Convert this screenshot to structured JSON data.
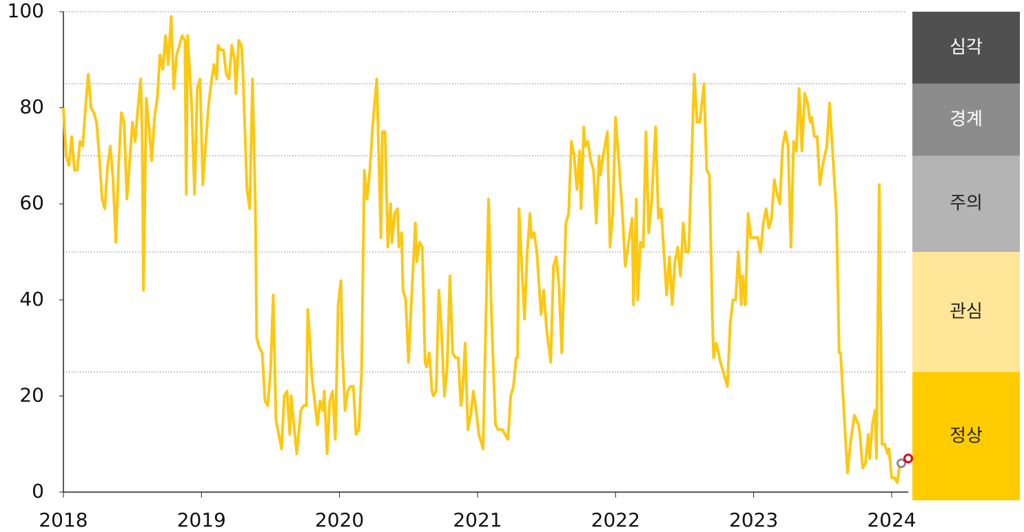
{
  "chart_data": {
    "type": "line",
    "x": [
      2018.0,
      2018.02,
      2018.04,
      2018.06,
      2018.08,
      2018.1,
      2018.12,
      2018.14,
      2018.16,
      2018.18,
      2018.2,
      2018.22,
      2018.24,
      2018.26,
      2018.28,
      2018.3,
      2018.32,
      2018.34,
      2018.36,
      2018.38,
      2018.4,
      2018.42,
      2018.44,
      2018.46,
      2018.48,
      2018.5,
      2018.52,
      2018.54,
      2018.56,
      2018.57,
      2018.58,
      2018.6,
      2018.62,
      2018.64,
      2018.66,
      2018.68,
      2018.7,
      2018.72,
      2018.74,
      2018.76,
      2018.78,
      2018.8,
      2018.82,
      2018.84,
      2018.86,
      2018.88,
      2018.89,
      2018.9,
      2018.93,
      2018.95,
      2018.97,
      2018.99,
      2019.01,
      2019.03,
      2019.05,
      2019.07,
      2019.09,
      2019.11,
      2019.12,
      2019.14,
      2019.16,
      2019.18,
      2019.2,
      2019.22,
      2019.24,
      2019.25,
      2019.27,
      2019.29,
      2019.3,
      2019.33,
      2019.35,
      2019.37,
      2019.39,
      2019.4,
      2019.42,
      2019.44,
      2019.46,
      2019.48,
      2019.5,
      2019.52,
      2019.54,
      2019.56,
      2019.58,
      2019.6,
      2019.62,
      2019.64,
      2019.65,
      2019.67,
      2019.69,
      2019.72,
      2019.74,
      2019.76,
      2019.77,
      2019.78,
      2019.8,
      2019.82,
      2019.84,
      2019.86,
      2019.88,
      2019.89,
      2019.91,
      2019.93,
      2019.95,
      2019.97,
      2019.99,
      2020.01,
      2020.02,
      2020.04,
      2020.06,
      2020.08,
      2020.1,
      2020.12,
      2020.14,
      2020.16,
      2020.18,
      2020.2,
      2020.22,
      2020.24,
      2020.27,
      2020.3,
      2020.31,
      2020.33,
      2020.35,
      2020.37,
      2020.38,
      2020.4,
      2020.42,
      2020.43,
      2020.45,
      2020.46,
      2020.48,
      2020.5,
      2020.52,
      2020.55,
      2020.56,
      2020.58,
      2020.6,
      2020.62,
      2020.63,
      2020.65,
      2020.67,
      2020.68,
      2020.7,
      2020.72,
      2020.74,
      2020.76,
      2020.78,
      2020.8,
      2020.82,
      2020.84,
      2020.86,
      2020.88,
      2020.89,
      2020.91,
      2020.93,
      2020.95,
      2020.97,
      2020.99,
      2021.01,
      2021.04,
      2021.08,
      2021.1,
      2021.13,
      2021.15,
      2021.18,
      2021.2,
      2021.22,
      2021.24,
      2021.26,
      2021.28,
      2021.29,
      2021.3,
      2021.34,
      2021.36,
      2021.38,
      2021.39,
      2021.41,
      2021.43,
      2021.46,
      2021.48,
      2021.5,
      2021.53,
      2021.55,
      2021.57,
      2021.59,
      2021.61,
      2021.64,
      2021.66,
      2021.68,
      2021.7,
      2021.72,
      2021.74,
      2021.75,
      2021.77,
      2021.78,
      2021.8,
      2021.82,
      2021.84,
      2021.86,
      2021.88,
      2021.89,
      2021.91,
      2021.94,
      2021.96,
      2021.98,
      2022.0,
      2022.03,
      2022.05,
      2022.07,
      2022.09,
      2022.12,
      2022.13,
      2022.15,
      2022.16,
      2022.18,
      2022.2,
      2022.22,
      2022.24,
      2022.26,
      2022.29,
      2022.31,
      2022.33,
      2022.35,
      2022.37,
      2022.39,
      2022.41,
      2022.43,
      2022.45,
      2022.47,
      2022.49,
      2022.51,
      2022.53,
      2022.57,
      2022.59,
      2022.61,
      2022.64,
      2022.66,
      2022.68,
      2022.7,
      2022.71,
      2022.73,
      2022.76,
      2022.81,
      2022.83,
      2022.85,
      2022.87,
      2022.89,
      2022.91,
      2022.92,
      2022.94,
      2022.96,
      2022.98,
      2023.0,
      2023.03,
      2023.05,
      2023.07,
      2023.09,
      2023.11,
      2023.13,
      2023.15,
      2023.17,
      2023.19,
      2023.21,
      2023.23,
      2023.25,
      2023.27,
      2023.29,
      2023.31,
      2023.33,
      2023.35,
      2023.37,
      2023.39,
      2023.41,
      2023.42,
      2023.44,
      2023.46,
      2023.48,
      2023.5,
      2023.53,
      2023.55,
      2023.57,
      2023.6,
      2023.62,
      2023.63,
      2023.66,
      2023.68,
      2023.7,
      2023.73,
      2023.76,
      2023.77,
      2023.79,
      2023.81,
      2023.83,
      2023.84,
      2023.86,
      2023.88,
      2023.89,
      2023.91,
      2023.93,
      2023.95,
      2023.97,
      2023.98,
      2024.0,
      2024.02,
      2024.04,
      2024.06,
      2024.1
    ],
    "values": [
      80,
      70,
      68,
      74,
      67,
      67,
      73,
      72,
      80,
      87,
      80,
      79,
      77,
      70,
      61,
      59,
      68,
      72,
      65,
      52,
      68,
      79,
      77,
      61,
      69,
      77,
      73,
      80,
      86,
      75,
      42,
      82,
      76,
      69,
      78,
      82,
      91,
      88,
      95,
      89,
      99,
      84,
      91,
      93,
      95,
      94,
      62,
      95,
      80,
      62,
      84,
      86,
      64,
      72,
      80,
      85,
      89,
      86,
      93,
      92,
      92,
      87,
      86,
      93,
      90,
      83,
      94,
      93,
      88,
      63,
      59,
      86,
      60,
      32,
      30,
      29,
      19,
      18,
      25,
      41,
      15,
      12,
      9,
      20,
      21,
      12,
      20,
      14,
      8,
      17,
      18,
      18,
      38,
      34,
      24,
      19,
      14,
      19,
      17,
      21,
      8,
      19,
      21,
      11,
      39,
      44,
      30,
      17,
      21,
      22,
      22,
      12,
      13,
      25,
      67,
      61,
      67,
      76,
      86,
      53,
      75,
      75,
      51,
      60,
      52,
      58,
      59,
      51,
      54,
      42,
      40,
      27,
      39,
      56,
      48,
      52,
      51,
      27,
      26,
      29,
      21,
      20,
      21,
      42,
      33,
      20,
      26,
      45,
      29,
      28,
      28,
      18,
      20,
      31,
      13,
      16,
      21,
      17,
      12,
      9,
      61,
      38,
      14,
      13,
      13,
      12,
      11,
      20,
      22,
      28,
      28,
      59,
      36,
      50,
      58,
      53,
      54,
      50,
      37,
      42,
      34,
      27,
      47,
      49,
      43,
      29,
      56,
      58,
      73,
      70,
      63,
      71,
      59,
      76,
      72,
      73,
      69,
      67,
      56,
      70,
      66,
      70,
      75,
      51,
      58,
      78,
      66,
      58,
      47,
      51,
      57,
      39,
      61,
      40,
      52,
      51,
      75,
      54,
      60,
      76,
      57,
      59,
      50,
      41,
      49,
      39,
      48,
      51,
      45,
      56,
      50,
      50,
      87,
      77,
      77,
      85,
      67,
      66,
      38,
      28,
      31,
      27,
      22,
      35,
      40,
      40,
      50,
      39,
      45,
      39,
      58,
      53,
      53,
      53,
      50,
      56,
      59,
      55,
      57,
      65,
      62,
      60,
      72,
      75,
      72,
      51,
      73,
      71,
      84,
      71,
      83,
      81,
      77,
      78,
      74,
      74,
      64,
      68,
      72,
      81,
      72,
      58,
      29,
      29,
      14,
      4,
      10,
      16,
      14,
      12,
      5,
      6,
      12,
      7,
      14,
      17,
      7,
      64,
      10,
      10,
      8,
      9,
      3,
      3,
      2,
      6,
      7
    ],
    "color": "#fcc812",
    "xlim": [
      2018,
      2024.12
    ],
    "xticks": [
      2018,
      2019,
      2020,
      2021,
      2022,
      2023,
      2024
    ],
    "ylim": [
      0,
      100
    ],
    "yticks": [
      0,
      20,
      40,
      60,
      80,
      100
    ],
    "markers": [
      {
        "x": 2024.07,
        "y": 6,
        "color": "#8c8c8c"
      },
      {
        "x": 2024.12,
        "y": 7,
        "color": "#e0001b"
      }
    ],
    "bands": [
      {
        "label": "심각",
        "from": 85,
        "to": 100,
        "color": "#505050",
        "text_color": "#ffffff"
      },
      {
        "label": "경계",
        "from": 70,
        "to": 85,
        "color": "#8c8c8c",
        "text_color": "#ffffff"
      },
      {
        "label": "주의",
        "from": 50,
        "to": 70,
        "color": "#b4b4b4",
        "text_color": "#222222"
      },
      {
        "label": "관심",
        "from": 25,
        "to": 50,
        "color": "#ffe699",
        "text_color": "#222222"
      },
      {
        "label": "정상",
        "from": 0,
        "to": 25,
        "color": "#ffcc00",
        "text_color": "#222222"
      }
    ]
  }
}
